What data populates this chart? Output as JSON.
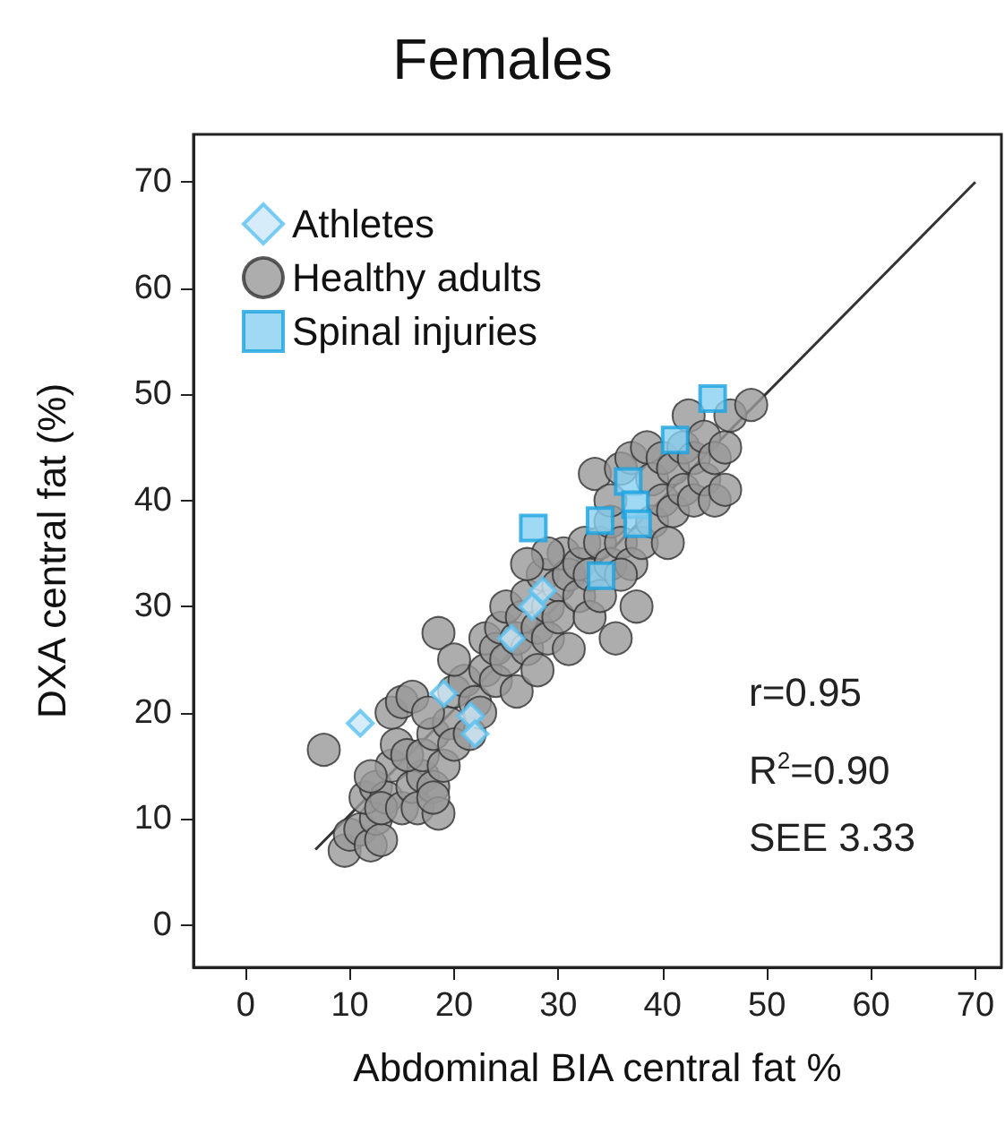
{
  "chart_data": {
    "type": "scatter",
    "title": "Females",
    "xlabel": "Abdominal BIA central fat %",
    "ylabel": "DXA central fat (%)",
    "xlim": [
      -5,
      72.5
    ],
    "ylim": [
      -4,
      74.5
    ],
    "xticks": [
      0,
      10,
      20,
      30,
      40,
      50,
      60,
      70
    ],
    "yticks": [
      0,
      10,
      20,
      30,
      40,
      50,
      60,
      70
    ],
    "grid": false,
    "legend": "top left",
    "annotations": [
      "r=0.95",
      "R$^{2}$=0.90",
      "SEE 3.33"
    ],
    "series": [
      {
        "name": "Athletes",
        "color": "#cce8f8",
        "marker": "diamond",
        "x": [
          11,
          19,
          21.6,
          22,
          25.5,
          27.5,
          28.5
        ],
        "values": [
          19,
          21.8,
          19.7,
          18,
          27,
          30,
          31.5
        ]
      },
      {
        "name": "Healthy adults",
        "color": "#999999",
        "marker": "circle",
        "x": [
          7.5,
          9.5,
          10,
          11,
          12,
          12.5,
          13,
          11.5,
          12.5,
          13.5,
          14,
          14.5,
          12,
          13,
          15,
          16,
          16.5,
          17,
          15.5,
          14,
          15,
          16,
          17,
          18,
          18.5,
          18,
          19,
          18,
          19.5,
          20,
          17.5,
          18.5,
          20,
          21,
          20,
          21.5,
          22,
          22.5,
          23,
          23,
          24,
          24,
          24.5,
          25,
          25,
          26,
          26,
          26.5,
          27,
          27,
          28,
          28,
          28.5,
          29,
          29,
          30,
          30,
          30.5,
          31,
          31,
          32,
          32,
          32.5,
          33,
          33,
          33.5,
          34,
          34,
          35,
          35,
          35.5,
          35,
          36,
          36,
          37,
          37,
          37.5,
          38,
          38.5,
          39,
          39,
          40,
          40,
          40.5,
          41,
          41,
          42,
          42,
          42.5,
          43,
          43,
          44,
          44,
          45,
          45,
          46,
          46,
          46.5,
          48.5,
          36,
          29,
          27
        ],
        "values": [
          16.5,
          7,
          8.5,
          9,
          7.5,
          10,
          8,
          12,
          13,
          12,
          15,
          17,
          14,
          11,
          11,
          13,
          11,
          14,
          16,
          20,
          21,
          21.5,
          16,
          13,
          10.5,
          12,
          15,
          18,
          19,
          17,
          20,
          27.5,
          22,
          23,
          25,
          18,
          21,
          20,
          24,
          27,
          26,
          23,
          28,
          30,
          25,
          27,
          22,
          29,
          26,
          31,
          28,
          24,
          33,
          30,
          27,
          32,
          29,
          35,
          26,
          33,
          31,
          34,
          36,
          29,
          33,
          42.5,
          36,
          31,
          38,
          34,
          27,
          40,
          36,
          43,
          34,
          44,
          30,
          36,
          45,
          42,
          38,
          44,
          40,
          36,
          43,
          39,
          45,
          41,
          48,
          44,
          40,
          46,
          42,
          44,
          40,
          45,
          41,
          48,
          49,
          33,
          35,
          34
        ]
      },
      {
        "name": "Spinal injuries",
        "color": "#88d0f0",
        "marker": "square",
        "x": [
          27.6,
          34,
          36.7,
          37.4,
          37.6,
          34.1,
          41.2,
          44.8
        ],
        "values": [
          37.4,
          38.1,
          41.8,
          39.6,
          37.8,
          32.9,
          45.7,
          49.6
        ]
      },
      {
        "type": "line",
        "color": "#333333",
        "marker": "none",
        "x": [
          6.7,
          70
        ],
        "values": [
          7.1,
          70
        ]
      }
    ]
  }
}
